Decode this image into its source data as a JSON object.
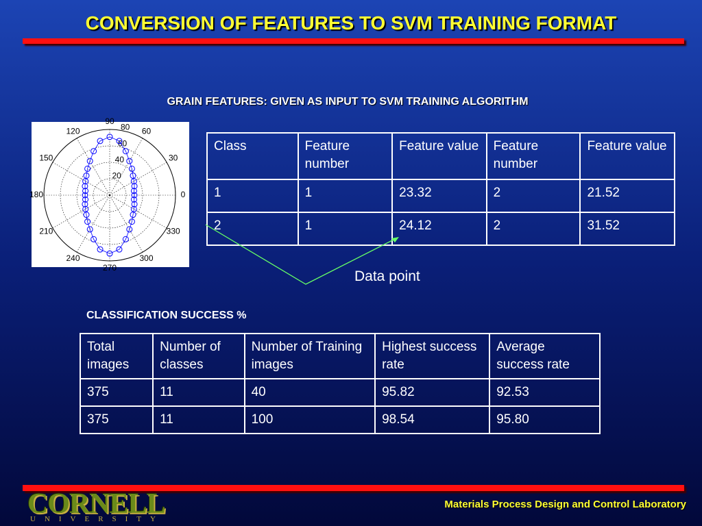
{
  "title": "CONVERSION OF FEATURES TO SVM TRAINING FORMAT",
  "subtitle": "GRAIN FEATURES: GIVEN AS INPUT TO SVM TRAINING ALGORITHM",
  "polar_plot": {
    "angle_ticks": [
      {
        "value": 0,
        "label": "0"
      },
      {
        "value": 30,
        "label": "30"
      },
      {
        "value": 60,
        "label": "60"
      },
      {
        "value": 90,
        "label": "90"
      },
      {
        "value": 120,
        "label": "120"
      },
      {
        "value": 150,
        "label": "150"
      },
      {
        "value": 180,
        "label": "180"
      },
      {
        "value": 210,
        "label": "210"
      },
      {
        "value": 240,
        "label": "240"
      },
      {
        "value": 270,
        "label": "270"
      },
      {
        "value": 300,
        "label": "300"
      },
      {
        "value": 330,
        "label": "330"
      }
    ],
    "rlim": [
      0,
      80
    ],
    "radial_ticks": [
      20,
      40,
      60,
      80
    ],
    "theta": [
      0,
      10,
      20,
      30,
      40,
      50,
      60,
      70,
      80,
      90,
      100,
      110,
      120,
      130,
      140,
      150,
      160,
      170,
      180,
      190,
      200,
      210,
      220,
      230,
      240,
      250,
      260,
      270,
      280,
      290,
      300,
      310,
      320,
      330,
      340,
      350
    ],
    "r": [
      30,
      30,
      32,
      34,
      37,
      42,
      48,
      57,
      67,
      71,
      67,
      57,
      48,
      42,
      37,
      34,
      32,
      30,
      30,
      30,
      32,
      34,
      37,
      42,
      48,
      57,
      67,
      71,
      67,
      57,
      48,
      42,
      37,
      34,
      32,
      30
    ],
    "color": "#0000ff"
  },
  "table1": {
    "header": [
      "Class",
      "Feature number",
      "Feature value",
      "Feature number",
      "Feature value"
    ],
    "rows": [
      [
        "1",
        "1",
        "23.32",
        "2",
        "21.52"
      ],
      [
        "2",
        "1",
        "24.12",
        "2",
        "31.52"
      ]
    ]
  },
  "annotation": "Data point",
  "section_title": "CLASSIFICATION SUCCESS %",
  "table2": {
    "header": [
      "Total images",
      "Number of classes",
      "Number of Training images",
      "Highest success rate",
      "Average success rate"
    ],
    "rows": [
      [
        "375",
        "11",
        "40",
        "95.82",
        "92.53"
      ],
      [
        "375",
        "11",
        "100",
        "98.54",
        "95.80"
      ]
    ]
  },
  "footer": {
    "logo": "CORNELL",
    "logo_sub": "UNIVERSITY",
    "lab": "Materials Process Design and Control Laboratory"
  }
}
